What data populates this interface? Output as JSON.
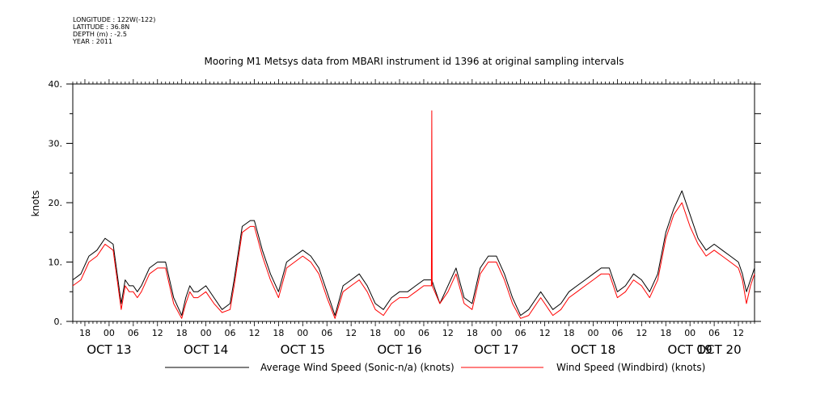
{
  "meta": {
    "longitude": "LONGITUDE : 122W(-122)",
    "latitude": "LATITUDE : 36.8N",
    "depth": "DEPTH (m) : -2.5",
    "year": "YEAR : 2011"
  },
  "chart_data": {
    "type": "line",
    "title": "Mooring M1 Metsys data from MBARI instrument id 1396 at original sampling intervals",
    "ylabel": "knots",
    "xlabel": "",
    "ylim": [
      0,
      40
    ],
    "yticks": [
      0,
      10,
      20,
      30,
      40
    ],
    "ytick_labels": [
      "0.",
      "10.",
      "20.",
      "30.",
      "40."
    ],
    "xlim_hours": [
      -9,
      160
    ],
    "hour_ticks": [
      {
        "h": -6,
        "label": "18"
      },
      {
        "h": 0,
        "label": "00"
      },
      {
        "h": 6,
        "label": "06"
      },
      {
        "h": 12,
        "label": "12"
      },
      {
        "h": 18,
        "label": "18"
      },
      {
        "h": 24,
        "label": "00"
      },
      {
        "h": 30,
        "label": "06"
      },
      {
        "h": 36,
        "label": "12"
      },
      {
        "h": 42,
        "label": "18"
      },
      {
        "h": 48,
        "label": "00"
      },
      {
        "h": 54,
        "label": "06"
      },
      {
        "h": 60,
        "label": "12"
      },
      {
        "h": 66,
        "label": "18"
      },
      {
        "h": 72,
        "label": "00"
      },
      {
        "h": 78,
        "label": "06"
      },
      {
        "h": 84,
        "label": "12"
      },
      {
        "h": 90,
        "label": "18"
      },
      {
        "h": 96,
        "label": "00"
      },
      {
        "h": 102,
        "label": "06"
      },
      {
        "h": 108,
        "label": "12"
      },
      {
        "h": 114,
        "label": "18"
      },
      {
        "h": 120,
        "label": "00"
      },
      {
        "h": 126,
        "label": "06"
      },
      {
        "h": 132,
        "label": "12"
      },
      {
        "h": 138,
        "label": "18"
      },
      {
        "h": 144,
        "label": "00"
      },
      {
        "h": 150,
        "label": "06"
      },
      {
        "h": 156,
        "label": "12"
      }
    ],
    "day_labels": [
      {
        "h": 0,
        "label": "OCT 13"
      },
      {
        "h": 24,
        "label": "OCT 14"
      },
      {
        "h": 48,
        "label": "OCT 15"
      },
      {
        "h": 72,
        "label": "OCT 16"
      },
      {
        "h": 96,
        "label": "OCT 17"
      },
      {
        "h": 120,
        "label": "OCT 18"
      },
      {
        "h": 144,
        "label": "OCT 19"
      },
      {
        "h": 168,
        "label": "OCT 20"
      }
    ],
    "series": [
      {
        "name": "Average Wind Speed (Sonic-n/a) (knots)",
        "color": "#000000",
        "x": [
          -9,
          -7,
          -5,
          -3,
          -1,
          1,
          2,
          3,
          4,
          5,
          6,
          7,
          8,
          10,
          12,
          14,
          16,
          18,
          19,
          20,
          21,
          22,
          24,
          26,
          28,
          30,
          31,
          33,
          35,
          36,
          38,
          40,
          42,
          44,
          46,
          48,
          50,
          52,
          54,
          56,
          58,
          60,
          62,
          64,
          66,
          68,
          70,
          72,
          74,
          76,
          78,
          80,
          82,
          84,
          86,
          88,
          90,
          92,
          94,
          96,
          98,
          100,
          102,
          104,
          106,
          107,
          108,
          109,
          110,
          112,
          114,
          116,
          118,
          120,
          122,
          124,
          126,
          128,
          130,
          132,
          134,
          136,
          138,
          140,
          142,
          144,
          146,
          148,
          150,
          152,
          154,
          156,
          157,
          158,
          159,
          160
        ],
        "y": [
          7,
          8,
          11,
          12,
          14,
          13,
          8,
          3,
          7,
          6,
          6,
          5,
          6,
          9,
          10,
          10,
          4,
          1,
          4,
          6,
          5,
          5,
          6,
          4,
          2,
          3,
          7,
          16,
          17,
          17,
          12,
          8,
          5,
          10,
          11,
          12,
          11,
          9,
          5,
          1,
          6,
          7,
          8,
          6,
          3,
          2,
          4,
          5,
          5,
          6,
          7,
          7,
          3,
          6,
          9,
          4,
          3,
          9,
          11,
          11,
          8,
          4,
          1,
          2,
          4,
          5,
          4,
          3,
          2,
          3,
          5,
          6,
          7,
          8,
          9,
          9,
          5,
          6,
          8,
          7,
          5,
          8,
          15,
          19,
          22,
          18,
          14,
          12,
          13,
          12,
          11,
          10,
          8,
          5,
          7,
          9
        ]
      },
      {
        "name": "Wind Speed (Windbird) (knots)",
        "color": "#ff0000",
        "x": [
          -9,
          -7,
          -5,
          -3,
          -1,
          1,
          2,
          3,
          4,
          5,
          6,
          7,
          8,
          10,
          12,
          14,
          16,
          18,
          19,
          20,
          21,
          22,
          24,
          26,
          28,
          30,
          31,
          33,
          35,
          36,
          38,
          40,
          42,
          44,
          46,
          48,
          50,
          52,
          54,
          56,
          58,
          60,
          62,
          64,
          66,
          68,
          70,
          72,
          74,
          76,
          78,
          79.9,
          80,
          80.1,
          82,
          84,
          86,
          88,
          90,
          92,
          94,
          96,
          98,
          100,
          102,
          104,
          106,
          107,
          108,
          109,
          110,
          112,
          114,
          116,
          118,
          120,
          122,
          124,
          126,
          128,
          130,
          132,
          134,
          136,
          138,
          140,
          142,
          144,
          146,
          148,
          150,
          152,
          154,
          156,
          157,
          158,
          159,
          160
        ],
        "y": [
          6,
          7,
          10,
          11,
          13,
          12,
          7,
          2,
          6,
          5,
          5,
          4,
          5,
          8,
          9,
          9,
          3,
          0.5,
          3,
          5,
          4,
          4,
          5,
          3,
          1.5,
          2,
          6,
          15,
          16,
          16,
          11,
          7,
          4,
          9,
          10,
          11,
          10,
          8,
          4,
          0.5,
          5,
          6,
          7,
          5,
          2,
          1,
          3,
          4,
          4,
          5,
          6,
          6,
          35.5,
          6,
          3,
          5,
          8,
          3,
          2,
          8,
          10,
          10,
          7,
          3,
          0.5,
          1,
          3,
          4,
          3,
          2,
          1,
          2,
          4,
          5,
          6,
          7,
          8,
          8,
          4,
          5,
          7,
          6,
          4,
          7,
          14,
          18,
          20,
          16,
          13,
          11,
          12,
          11,
          10,
          9,
          7,
          3,
          6,
          8
        ]
      }
    ]
  }
}
